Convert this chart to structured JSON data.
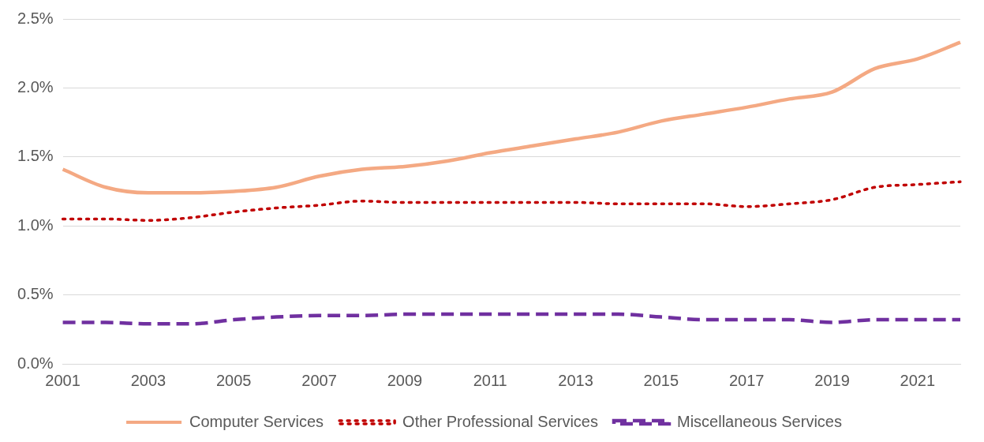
{
  "chart_data": {
    "type": "line",
    "categories": [
      "2001",
      null,
      "2003",
      null,
      "2005",
      null,
      "2007",
      null,
      "2009",
      null,
      "2011",
      null,
      "2013",
      null,
      "2015",
      null,
      "2017",
      null,
      "2019",
      null,
      "2021",
      null
    ],
    "series": [
      {
        "name": "Computer Services",
        "color": "#f4a983",
        "line_style": "solid",
        "values": [
          1.41,
          1.28,
          1.24,
          1.24,
          1.25,
          1.28,
          1.36,
          1.41,
          1.43,
          1.47,
          1.53,
          1.58,
          1.63,
          1.68,
          1.76,
          1.81,
          1.86,
          1.92,
          1.97,
          2.14,
          2.21,
          2.33
        ]
      },
      {
        "name": "Other Professional Services",
        "color": "#c00000",
        "line_style": "dotted",
        "values": [
          1.05,
          1.05,
          1.04,
          1.06,
          1.1,
          1.13,
          1.15,
          1.18,
          1.17,
          1.17,
          1.17,
          1.17,
          1.17,
          1.16,
          1.16,
          1.16,
          1.14,
          1.16,
          1.19,
          1.28,
          1.3,
          1.32
        ]
      },
      {
        "name": "Miscellaneous Services",
        "color": "#7030a0",
        "line_style": "dashed",
        "values": [
          0.3,
          0.3,
          0.29,
          0.29,
          0.32,
          0.34,
          0.35,
          0.35,
          0.36,
          0.36,
          0.36,
          0.36,
          0.36,
          0.36,
          0.34,
          0.32,
          0.32,
          0.32,
          0.3,
          0.32,
          0.32,
          0.32
        ]
      }
    ],
    "ylim": [
      0,
      2.5
    ],
    "yticks": [
      {
        "value": 0,
        "label": "0.0%"
      },
      {
        "value": 0.5,
        "label": "0.5%"
      },
      {
        "value": 1,
        "label": "1.0%"
      },
      {
        "value": 1.5,
        "label": "1.5%"
      },
      {
        "value": 2,
        "label": "2.0%"
      },
      {
        "value": 2.5,
        "label": "2.5%"
      }
    ],
    "grid": "y",
    "legend": "bottom",
    "marker": "none"
  }
}
